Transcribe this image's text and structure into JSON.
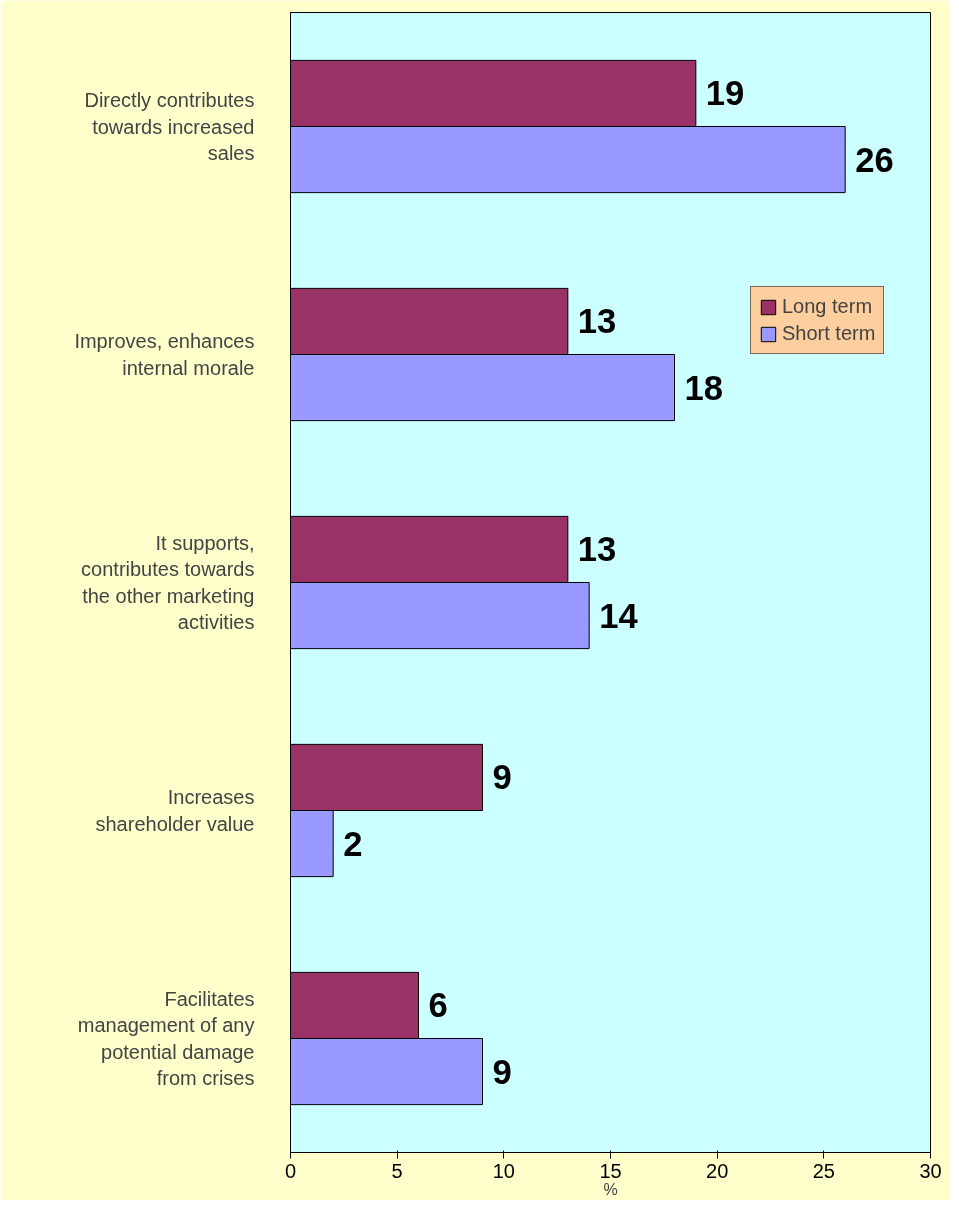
{
  "chart_data": {
    "type": "bar",
    "orientation": "horizontal",
    "xlabel": "%",
    "categories": [
      "Directly contributes towards increased sales",
      "Improves, enhances internal morale",
      "It supports, contributes towards the other marketing activities",
      "Increases shareholder value",
      "Facilitates management of any potential damage from crises"
    ],
    "series": [
      {
        "name": "Long term",
        "color": "#993366",
        "values": [
          19,
          13,
          13,
          9,
          6
        ]
      },
      {
        "name": "Short term",
        "color": "#9999ff",
        "values": [
          26,
          18,
          14,
          2,
          9
        ]
      }
    ],
    "xlim": [
      0,
      30
    ],
    "xticks": [
      0,
      5,
      10,
      15,
      20,
      25,
      30
    ],
    "grid": false,
    "legend": "top right",
    "data_labels": true
  }
}
